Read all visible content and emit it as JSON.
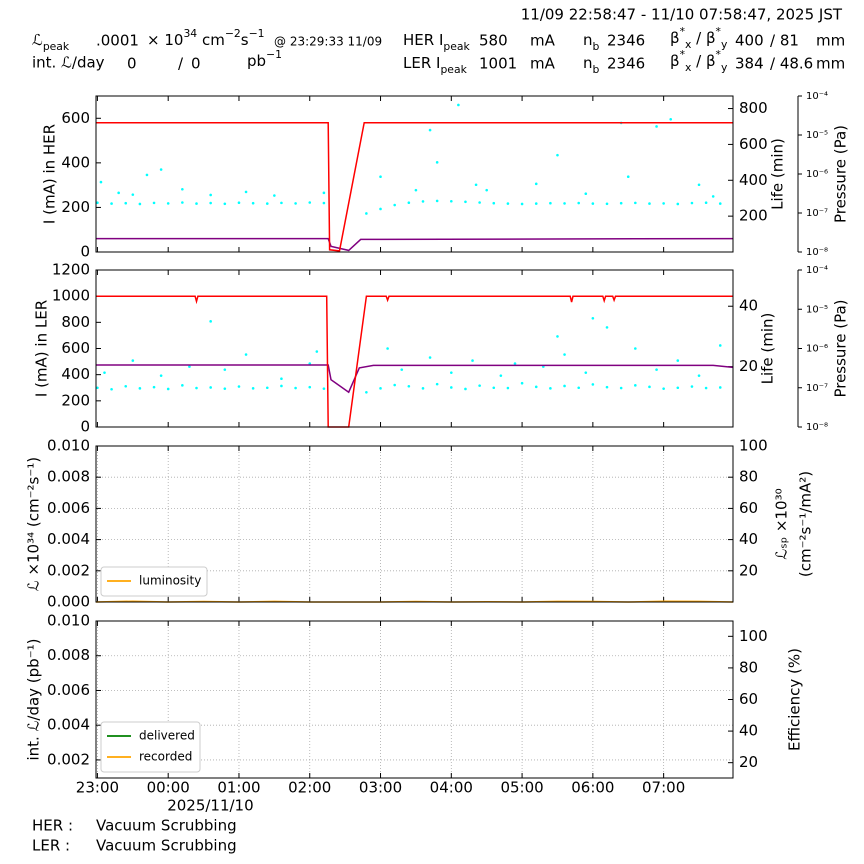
{
  "header": {
    "timestamp": "11/09 22:58:47 - 11/10 07:58:47, 2025 JST",
    "lpeak_label": [
      {
        "text": "ℒ"
      },
      {
        "text": "peak",
        "pos": "sub"
      }
    ],
    "lpeak_value": ".0001",
    "lpeak_unit": [
      {
        "text": "× 10"
      },
      {
        "text": "34",
        "pos": "sup"
      },
      {
        "text": " cm"
      },
      {
        "text": "−2",
        "pos": "sup"
      },
      {
        "text": "s"
      },
      {
        "text": "−1",
        "pos": "sup"
      }
    ],
    "lpeak_time": "@ 23:29:33 11/09",
    "intl_label": "int. ℒ/day",
    "intl_delivered": 0,
    "intl_sep": "/",
    "intl_recorded": 0,
    "intl_unit": [
      {
        "text": "pb"
      },
      {
        "text": "−1",
        "pos": "sup"
      }
    ],
    "rings": [
      {
        "label": [
          {
            "text": "HER I"
          },
          {
            "text": "peak",
            "pos": "sub"
          }
        ],
        "ipeak": 580,
        "ipeak_unit": "mA",
        "nb_label": [
          {
            "text": "n"
          },
          {
            "text": "b",
            "pos": "sub"
          }
        ],
        "nb": 2346,
        "beta_label": [
          {
            "text": "β"
          },
          {
            "text": "*",
            "pos": "sup"
          },
          {
            "text": "x",
            "pos": "sub"
          },
          {
            "text": " / β"
          },
          {
            "text": "*",
            "pos": "sup"
          },
          {
            "text": "y",
            "pos": "sub"
          }
        ],
        "beta_x": 400,
        "beta_y": "/ 81",
        "beta_unit": "mm"
      },
      {
        "label": [
          {
            "text": "LER I"
          },
          {
            "text": "peak",
            "pos": "sub"
          }
        ],
        "ipeak": 1001,
        "ipeak_unit": "mA",
        "nb_label": [
          {
            "text": "n"
          },
          {
            "text": "b",
            "pos": "sub"
          }
        ],
        "nb": 2346,
        "beta_label": [
          {
            "text": "β"
          },
          {
            "text": "*",
            "pos": "sup"
          },
          {
            "text": "x",
            "pos": "sub"
          },
          {
            "text": " / β"
          },
          {
            "text": "*",
            "pos": "sup"
          },
          {
            "text": "y",
            "pos": "sub"
          }
        ],
        "beta_x": 384,
        "beta_y": "/ 48.6",
        "beta_unit": "mm"
      }
    ]
  },
  "footer": [
    {
      "ring": "HER :",
      "status": "Vacuum Scrubbing"
    },
    {
      "ring": "LER :",
      "status": "Vacuum Scrubbing"
    }
  ],
  "chart_data": [
    {
      "type": "line",
      "ylabel": "I (mA) in HER",
      "ylim": [
        0,
        700
      ],
      "yticks": [
        0,
        200,
        400,
        600
      ],
      "y2label": [
        "Life (min)"
      ],
      "y2lim": [
        0,
        870
      ],
      "y2ticks": [
        200,
        400,
        600,
        800
      ],
      "y3label": "Pressure (Pa)",
      "y3lim": [
        1e-08,
        0.0001
      ],
      "y3scale": "log",
      "y3ticks": [
        {
          "value": 1e-08,
          "label": "10⁻⁸"
        },
        {
          "value": 1e-07,
          "label": "10⁻⁷"
        },
        {
          "value": 1e-06,
          "label": "10⁻⁶"
        },
        {
          "value": 1e-05,
          "label": "10⁻⁵"
        },
        {
          "value": 0.0001,
          "label": "10⁻⁴"
        }
      ],
      "series": [
        {
          "type": "scatter",
          "axis": "y2",
          "color": "#00ffff",
          "x": [
            23.0,
            23.2,
            23.4,
            23.6,
            23.8,
            24.0,
            24.2,
            24.4,
            24.6,
            24.8,
            25.0,
            25.2,
            25.4,
            25.6,
            25.8,
            26.0,
            26.2,
            26.8,
            27.0,
            27.2,
            27.4,
            27.6,
            27.8,
            28.0,
            28.2,
            28.4,
            28.6,
            28.8,
            29.0,
            29.2,
            29.4,
            29.6,
            29.8,
            30.0,
            30.2,
            30.4,
            30.6,
            30.8,
            31.0,
            31.2,
            31.4,
            31.6,
            31.8,
            23.05,
            23.3,
            23.7,
            23.9,
            24.2,
            25.1,
            26.2,
            27.0,
            27.5,
            27.8,
            28.1,
            28.35,
            28.5,
            29.2,
            29.5,
            30.4,
            30.5,
            30.9,
            31.1,
            31.5,
            31.7,
            23.5,
            24.6,
            25.5,
            27.7,
            29.9
          ],
          "values": [
            275,
            270,
            272,
            268,
            274,
            271,
            276,
            270,
            273,
            269,
            275,
            272,
            270,
            274,
            271,
            276,
            273,
            215,
            240,
            262,
            275,
            282,
            285,
            283,
            280,
            276,
            272,
            270,
            268,
            270,
            272,
            271,
            273,
            270,
            269,
            272,
            274,
            270,
            271,
            268,
            273,
            275,
            270,
            390,
            330,
            430,
            460,
            350,
            335,
            330,
            420,
            345,
            500,
            820,
            375,
            345,
            380,
            540,
            720,
            420,
            700,
            740,
            375,
            310,
            320,
            318,
            315,
            680,
            325
          ]
        },
        {
          "axis": "y3",
          "color": "#800080",
          "x": [
            22.98,
            26.26,
            26.3,
            26.55,
            26.72,
            31.98
          ],
          "values": [
            2.2e-08,
            2.2e-08,
            1.4e-08,
            1.1e-08,
            2.1e-08,
            2.2e-08
          ]
        },
        {
          "axis": "y",
          "color": "#ff0000",
          "x": [
            22.98,
            26.26,
            26.28,
            26.42,
            26.77,
            31.98
          ],
          "values": [
            580,
            580,
            10,
            5,
            580,
            580
          ]
        }
      ]
    },
    {
      "type": "line",
      "ylabel": "I (mA) in LER",
      "ylim": [
        0,
        1200
      ],
      "yticks": [
        0,
        200,
        400,
        600,
        800,
        1000,
        1200
      ],
      "y2label": [
        "Life (min)"
      ],
      "y2lim": [
        0,
        52
      ],
      "y2ticks": [
        20,
        40
      ],
      "y3label": "Pressure (Pa)",
      "y3lim": [
        1e-08,
        0.0001
      ],
      "y3scale": "log",
      "y3ticks": [
        {
          "value": 1e-08,
          "label": "10⁻⁸"
        },
        {
          "value": 1e-07,
          "label": "10⁻⁷"
        },
        {
          "value": 1e-06,
          "label": "10⁻⁶"
        },
        {
          "value": 1e-05,
          "label": "10⁻⁵"
        },
        {
          "value": 0.0001,
          "label": "10⁻⁴"
        }
      ],
      "series": [
        {
          "type": "scatter",
          "axis": "y2",
          "color": "#00ffff",
          "x": [
            23.0,
            23.2,
            23.4,
            23.6,
            23.8,
            24.0,
            24.2,
            24.4,
            24.6,
            24.8,
            25.0,
            25.2,
            25.4,
            25.6,
            25.8,
            26.0,
            26.2,
            26.8,
            27.0,
            27.2,
            27.4,
            27.6,
            27.8,
            28.0,
            28.2,
            28.4,
            28.6,
            28.8,
            29.0,
            29.2,
            29.4,
            29.6,
            29.8,
            30.0,
            30.2,
            30.4,
            30.6,
            30.8,
            31.0,
            31.2,
            31.4,
            31.6,
            31.8,
            23.1,
            23.5,
            23.9,
            24.3,
            24.8,
            25.1,
            25.6,
            26.0,
            26.1,
            27.1,
            27.3,
            27.7,
            28.0,
            28.3,
            28.7,
            28.9,
            29.3,
            29.6,
            29.9,
            30.2,
            30.6,
            30.9,
            31.2,
            31.5,
            31.8,
            24.6,
            29.5,
            30.0
          ],
          "values": [
            13.0,
            12.5,
            13.5,
            12.8,
            13.2,
            12.6,
            13.8,
            12.9,
            13.1,
            12.7,
            13.4,
            12.8,
            13.0,
            13.6,
            12.9,
            13.2,
            12.7,
            11.5,
            12.8,
            13.9,
            13.5,
            12.8,
            14.2,
            13.1,
            12.6,
            13.7,
            13.0,
            12.9,
            14.5,
            13.3,
            12.8,
            13.6,
            13.0,
            14.1,
            13.2,
            12.9,
            13.8,
            13.3,
            12.7,
            13.0,
            13.4,
            12.9,
            13.1,
            18,
            22,
            17,
            20,
            19,
            24,
            16,
            21,
            25,
            26,
            19,
            23,
            18,
            22,
            17,
            21,
            20,
            24,
            18,
            33,
            26,
            19,
            22,
            17,
            27,
            35,
            30,
            36
          ]
        },
        {
          "axis": "y3",
          "color": "#800080",
          "x": [
            22.98,
            26.26,
            26.3,
            26.55,
            26.7,
            26.9,
            31.7,
            31.98
          ],
          "values": [
            3.8e-07,
            3.8e-07,
            1.6e-07,
            7.7e-08,
            3.2e-07,
            3.7e-07,
            3.7e-07,
            3.3e-07
          ]
        },
        {
          "axis": "y",
          "color": "#ff0000",
          "x": [
            22.98,
            24.38,
            24.4,
            24.42,
            26.24,
            26.26,
            26.55,
            26.8,
            27.08,
            27.1,
            27.12,
            29.68,
            29.7,
            29.72,
            30.14,
            30.16,
            30.18,
            30.28,
            30.3,
            30.32,
            31.98
          ],
          "values": [
            1000,
            1000,
            960,
            1000,
            1000,
            0,
            0,
            1000,
            1000,
            970,
            1000,
            1000,
            955,
            1000,
            1000,
            965,
            1000,
            1000,
            970,
            1000,
            1000
          ]
        }
      ]
    },
    {
      "type": "line",
      "grid": true,
      "legend": "lower left",
      "ylabel": "ℒ ×10³⁴ (cm⁻²s⁻¹)",
      "ylim": [
        0,
        0.01
      ],
      "yticks": [
        {
          "value": 0,
          "label": "0.000"
        },
        0.002,
        0.004,
        0.006,
        0.008,
        {
          "value": 0.01,
          "label": "0.010"
        }
      ],
      "y2label": [
        "ℒₛₚ ×10³⁰",
        "(cm⁻²s⁻¹/mA²)"
      ],
      "y2lim": [
        0,
        100
      ],
      "y2ticks": [
        20,
        40,
        60,
        80,
        100
      ],
      "series": [
        {
          "name": "luminosity",
          "axis": "y",
          "color": "#ffa500",
          "x": [
            22.98,
            23.5,
            24.0,
            24.5,
            25.0,
            25.5,
            26.0,
            27.0,
            27.5,
            28.0,
            28.5,
            29.0,
            29.5,
            30.0,
            30.5,
            31.0,
            31.5,
            31.98
          ],
          "values": [
            0,
            5e-05,
            0,
            3e-05,
            0,
            4e-05,
            0,
            0,
            3e-05,
            0,
            2e-05,
            0,
            4e-05,
            3e-05,
            0,
            5e-05,
            4e-05,
            0
          ]
        }
      ]
    },
    {
      "type": "line",
      "grid": true,
      "legend": "lower left",
      "xlim": [
        22.98,
        31.98
      ],
      "xticks": [
        {
          "value": 23,
          "label": "23:00"
        },
        {
          "value": 24,
          "label": "00:00"
        },
        {
          "value": 25,
          "label": "01:00"
        },
        {
          "value": 26,
          "label": "02:00"
        },
        {
          "value": 27,
          "label": "03:00"
        },
        {
          "value": 28,
          "label": "04:00"
        },
        {
          "value": 29,
          "label": "05:00"
        },
        {
          "value": 30,
          "label": "06:00"
        },
        {
          "value": 31,
          "label": "07:00"
        }
      ],
      "xdate": "2025/11/10",
      "ylabel": "int. ℒ/day (pb⁻¹)",
      "ylim": [
        0.00096,
        0.01
      ],
      "yticks": [
        0.002,
        0.004,
        0.006,
        0.008,
        {
          "value": 0.01,
          "label": "0.010"
        }
      ],
      "y2label": [
        "Efficiency (%)"
      ],
      "y2lim": [
        10.3,
        109.7
      ],
      "y2ticks": [
        20,
        40,
        60,
        80,
        100
      ],
      "series": [
        {
          "name": "delivered",
          "axis": "y",
          "color": "#008000",
          "x": [],
          "values": []
        },
        {
          "name": "recorded",
          "axis": "y",
          "color": "#ffa500",
          "x": [],
          "values": []
        }
      ]
    }
  ]
}
